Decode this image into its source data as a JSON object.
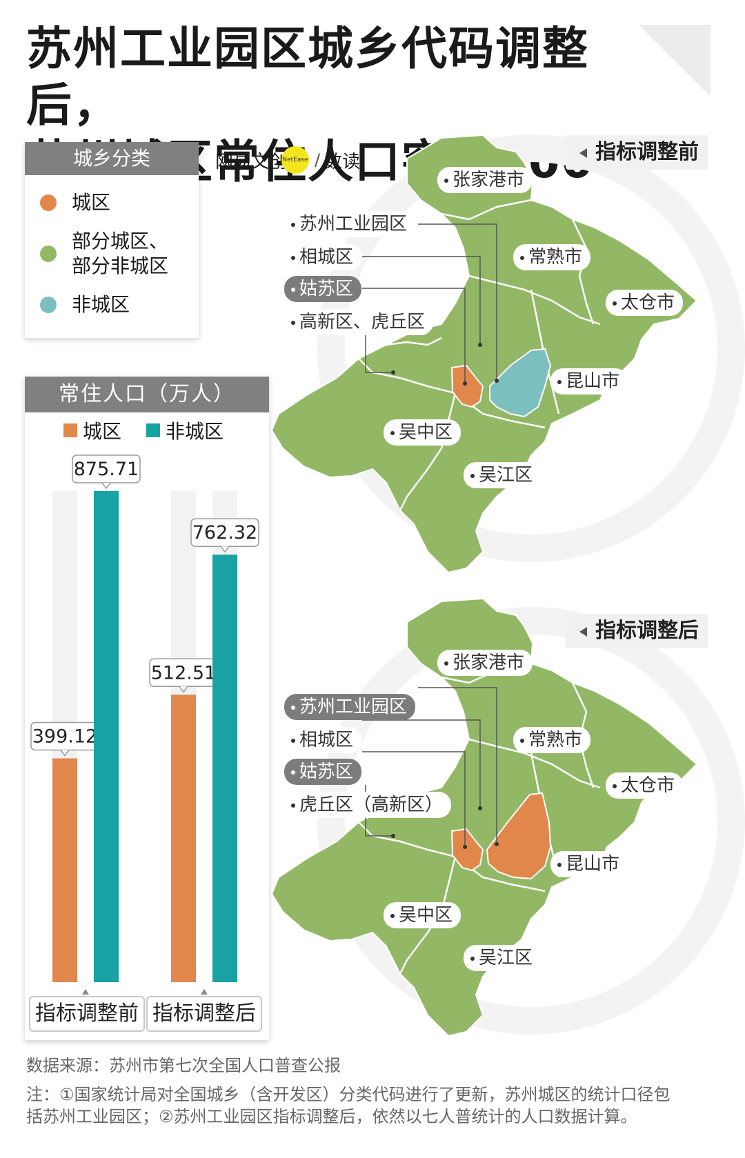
{
  "title": [
    "苏州工业园区城乡代码调整后，",
    "苏州城区常住人口突破500万"
  ],
  "legend": {
    "header": "城乡分类",
    "items": [
      {
        "label": "城区",
        "color": "#e2874b"
      },
      {
        "label": "部分城区、",
        "label2": "部分非城区",
        "color": "#93b865"
      },
      {
        "label": "非城区",
        "color": "#7bbfbf"
      }
    ]
  },
  "brand": {
    "name": "网易文创",
    "sub": "NetEase",
    "section": "数读"
  },
  "chart_data": {
    "type": "bar",
    "title": "常住人口（万人）",
    "categories": [
      "指标调整前",
      "指标调整后"
    ],
    "series": [
      {
        "name": "城区",
        "color": "#e2874b",
        "values": [
          399.12,
          512.51
        ]
      },
      {
        "name": "非城区",
        "color": "#18a2a3",
        "values": [
          875.71,
          762.32
        ]
      }
    ],
    "ylim": [
      0,
      875.71
    ]
  },
  "maps": {
    "before": {
      "tag": "指标调整前",
      "labels": {
        "zhangjiagang": "张家港市",
        "changshu": "常熟市",
        "taicang": "太仓市",
        "kunshan": "昆山市",
        "wuzhong": "吴中区",
        "wujiang": "吴江区",
        "sip": "苏州工业园区",
        "xiangcheng": "相城区",
        "gusu": "姑苏区",
        "gaoxin": "高新区、虎丘区"
      }
    },
    "after": {
      "tag": "指标调整后",
      "labels": {
        "zhangjiagang": "张家港市",
        "changshu": "常熟市",
        "taicang": "太仓市",
        "kunshan": "昆山市",
        "wuzhong": "吴中区",
        "wujiang": "吴江区",
        "sip": "苏州工业园区",
        "xiangcheng": "相城区",
        "gusu": "姑苏区",
        "gaoxin": "虎丘区（高新区）"
      }
    },
    "colors": {
      "green": "#93b865",
      "orange": "#e2874b",
      "teal": "#7bbfbf"
    }
  },
  "footer": {
    "source": "数据来源：苏州市第七次全国人口普查公报",
    "note1": "注：①国家统计局对全国城乡（含开发区）分类代码进行了更新，苏州城区的统计口径包",
    "note2": "括苏州工业园区；②苏州工业园区指标调整后，依然以七人普统计的人口数据计算。"
  }
}
